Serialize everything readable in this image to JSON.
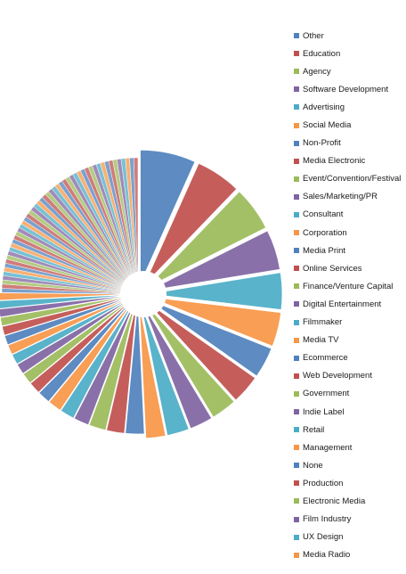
{
  "chart_data": {
    "type": "pie",
    "exploded": true,
    "labels": [
      "Other",
      "Education",
      "Agency",
      "Software Development",
      "Advertising",
      "Social Media",
      "Non-Profit",
      "Media Electronic",
      "Event/Convention/Festival",
      "Sales/Marketing/PR",
      "Consultant",
      "Corporation",
      "Media Print",
      "Online Services",
      "Finance/Venture Capital",
      "Digital Entertainment",
      "Filmmaker",
      "Media TV",
      "Ecommerce",
      "Web Development",
      "Government",
      "Indie Label",
      "Retail",
      "Management",
      "None",
      "Production",
      "Electronic Media",
      "Film Industry",
      "UX Design",
      "Media Radio"
    ],
    "values": [
      6.5,
      5.3,
      5.2,
      4.7,
      4.3,
      4.0,
      3.6,
      3.4,
      3.0,
      2.7,
      2.6,
      2.3,
      2.2,
      2.1,
      2.0,
      1.8,
      1.7,
      1.6,
      1.5,
      1.4,
      1.3,
      1.25,
      1.2,
      1.15,
      1.1,
      1.05,
      1.0,
      0.95,
      0.92,
      0.88
    ],
    "unlabeled_tail": {
      "count": 50,
      "value_each": 0.48
    },
    "palette": [
      "#4f81bd",
      "#c0504d",
      "#9bbb59",
      "#8064a2",
      "#4bacc6",
      "#f79646"
    ],
    "legend_position": "right"
  }
}
